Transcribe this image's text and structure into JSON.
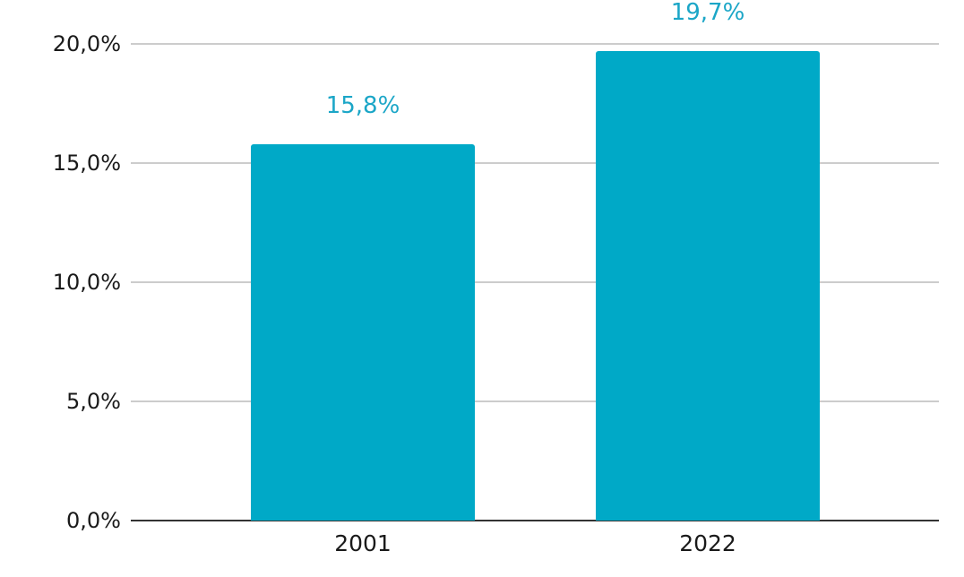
{
  "chart_data": {
    "type": "bar",
    "categories": [
      "2001",
      "2022"
    ],
    "values": [
      15.8,
      19.7
    ],
    "value_labels": [
      "15,8%",
      "19,7%"
    ],
    "title": "",
    "xlabel": "",
    "ylabel": "",
    "ylim": [
      0,
      20
    ],
    "yticks": [
      0,
      5,
      10,
      15,
      20
    ],
    "ytick_labels": [
      "0,0%",
      "5,0%",
      "10,0%",
      "15,0%",
      "20,0%"
    ],
    "grid": true,
    "legend": false,
    "colors": {
      "bar": "#00A9C7",
      "value_label": "#1BA6C7",
      "grid_line": "#CCCCCC",
      "axis_line": "#333333",
      "tick_label": "#1A1A1A",
      "category_label": "#1A1A1A",
      "background": "#FFFFFF"
    }
  }
}
